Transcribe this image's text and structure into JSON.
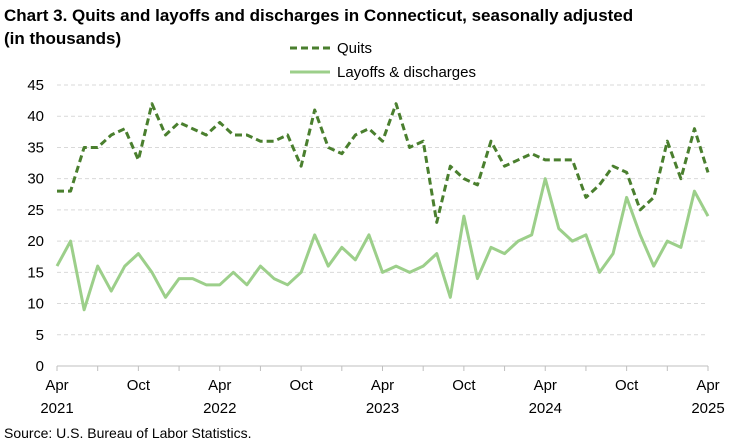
{
  "title_line1": "Chart 3. Quits and layoffs and discharges in Connecticut, seasonally adjusted",
  "title_line2": "(in thousands)",
  "source": "Source: U.S. Bureau of Labor Statistics.",
  "chart_data": {
    "type": "line",
    "title": "Chart 3. Quits and layoffs and discharges in Connecticut, seasonally adjusted (in thousands)",
    "xlabel": "",
    "ylabel": "",
    "ylim": [
      0,
      45
    ],
    "yticks": [
      0,
      5,
      10,
      15,
      20,
      25,
      30,
      35,
      40,
      45
    ],
    "grid": "horizontal dashed",
    "legend_position": "top-center",
    "x": [
      "2021-04",
      "2021-05",
      "2021-06",
      "2021-07",
      "2021-08",
      "2021-09",
      "2021-10",
      "2021-11",
      "2021-12",
      "2022-01",
      "2022-02",
      "2022-03",
      "2022-04",
      "2022-05",
      "2022-06",
      "2022-07",
      "2022-08",
      "2022-09",
      "2022-10",
      "2022-11",
      "2022-12",
      "2023-01",
      "2023-02",
      "2023-03",
      "2023-04",
      "2023-05",
      "2023-06",
      "2023-07",
      "2023-08",
      "2023-09",
      "2023-10",
      "2023-11",
      "2023-12",
      "2024-01",
      "2024-02",
      "2024-03",
      "2024-04",
      "2024-05",
      "2024-06",
      "2024-07",
      "2024-08",
      "2024-09",
      "2024-10",
      "2024-11",
      "2024-12",
      "2025-01",
      "2025-02",
      "2025-03",
      "2025-04"
    ],
    "x_tick_labels": [
      {
        "month": "Apr",
        "year": "2021"
      },
      {
        "month": "Oct",
        "year": ""
      },
      {
        "month": "Apr",
        "year": "2022"
      },
      {
        "month": "Oct",
        "year": ""
      },
      {
        "month": "Apr",
        "year": "2023"
      },
      {
        "month": "Oct",
        "year": ""
      },
      {
        "month": "Apr",
        "year": "2024"
      },
      {
        "month": "Oct",
        "year": ""
      },
      {
        "month": "Apr",
        "year": "2025"
      }
    ],
    "series": [
      {
        "name": "Quits",
        "color": "#4a7f2e",
        "style": "dashed",
        "values": [
          28,
          28,
          35,
          35,
          37,
          38,
          33,
          42,
          37,
          39,
          38,
          37,
          39,
          37,
          37,
          36,
          36,
          37,
          32,
          41,
          35,
          34,
          37,
          38,
          36,
          42,
          35,
          36,
          23,
          32,
          30,
          29,
          36,
          32,
          33,
          34,
          33,
          33,
          33,
          27,
          29,
          32,
          31,
          25,
          27,
          36,
          30,
          38,
          31
        ]
      },
      {
        "name": "Layoffs & discharges",
        "color": "#9ccf8a",
        "style": "solid",
        "values": [
          16,
          20,
          9,
          16,
          12,
          16,
          18,
          15,
          11,
          14,
          14,
          13,
          13,
          15,
          13,
          16,
          14,
          13,
          15,
          21,
          16,
          19,
          17,
          21,
          15,
          16,
          15,
          16,
          18,
          11,
          24,
          14,
          19,
          18,
          20,
          21,
          30,
          22,
          20,
          21,
          15,
          18,
          27,
          21,
          16,
          20,
          19,
          28,
          24
        ]
      }
    ]
  }
}
